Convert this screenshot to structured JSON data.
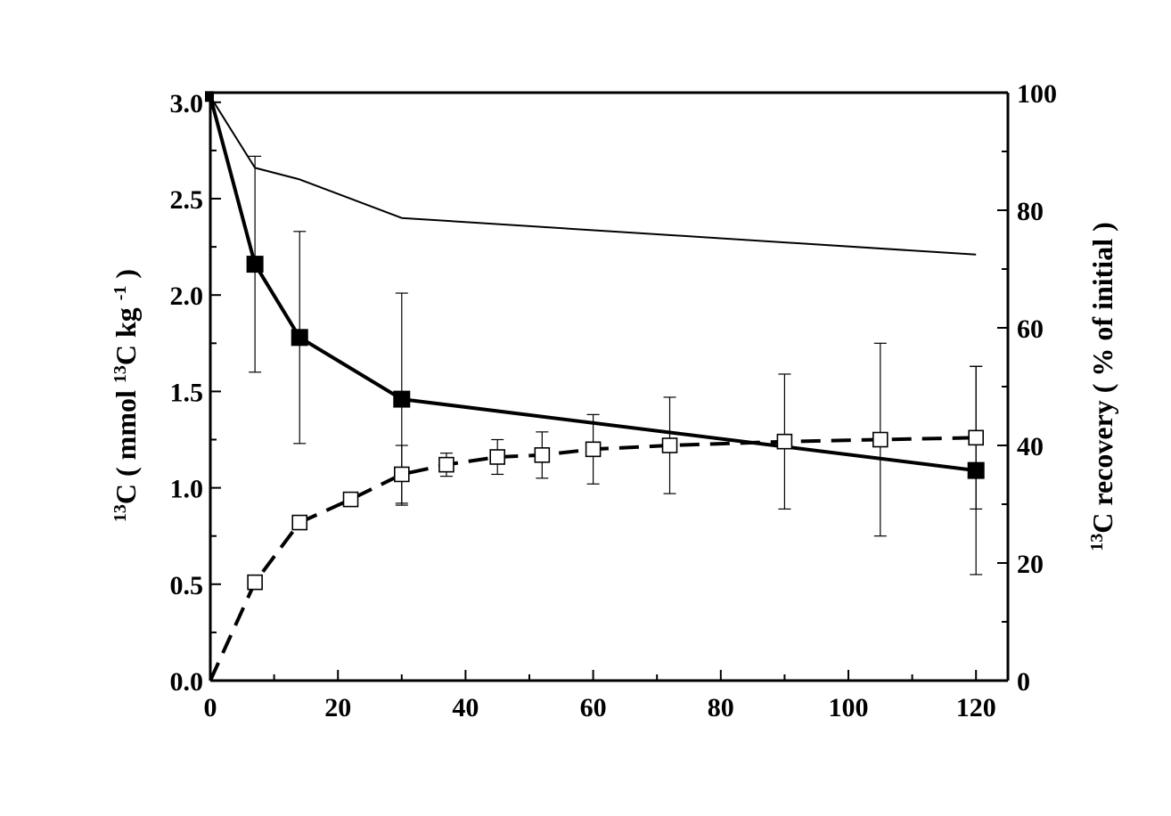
{
  "chart_data": {
    "type": "line",
    "title": "",
    "xlabel": "",
    "ylabel_left": {
      "sup1": "13",
      "pre": "C ( mmol ",
      "sup2": "13",
      "mid": "C kg ",
      "sup3": "-1",
      "post": " )"
    },
    "ylabel_right": {
      "sup1": "13",
      "text": "C  recovery ( % of initial )"
    },
    "xlim": [
      0,
      125
    ],
    "ylim_left": [
      0,
      3.05
    ],
    "ylim_right": [
      0,
      100
    ],
    "x_ticks": [
      "0",
      "20",
      "40",
      "60",
      "80",
      "100",
      "120"
    ],
    "y_ticks_left": [
      "0.0",
      "0.5",
      "1.0",
      "1.5",
      "2.0",
      "2.5",
      "3.0"
    ],
    "y_ticks_right": [
      "0",
      "20",
      "40",
      "60",
      "80",
      "100"
    ],
    "grid": false,
    "series": [
      {
        "style": "solid-thick-filled-square",
        "axis": "left",
        "x": [
          0,
          7,
          14,
          30,
          120
        ],
        "y": [
          3.03,
          2.16,
          1.78,
          1.46,
          1.09
        ],
        "err": [
          0,
          0.56,
          0.55,
          0.55,
          0.54
        ]
      },
      {
        "style": "solid-thin",
        "axis": "left",
        "x": [
          0,
          7,
          14,
          30,
          120
        ],
        "y": [
          3.03,
          2.66,
          2.6,
          2.4,
          2.21
        ]
      },
      {
        "style": "dashed-open-square",
        "axis": "left",
        "x": [
          0,
          7,
          14,
          22,
          30,
          37,
          45,
          52,
          60,
          72,
          90,
          105,
          120
        ],
        "y": [
          0.0,
          0.51,
          0.82,
          0.94,
          1.07,
          1.12,
          1.16,
          1.17,
          1.2,
          1.22,
          1.24,
          1.25,
          1.26
        ],
        "err": [
          0,
          0.02,
          0.03,
          0.02,
          0.15,
          0.06,
          0.09,
          0.12,
          0.18,
          0.25,
          0.35,
          0.5,
          0.37
        ]
      }
    ]
  }
}
